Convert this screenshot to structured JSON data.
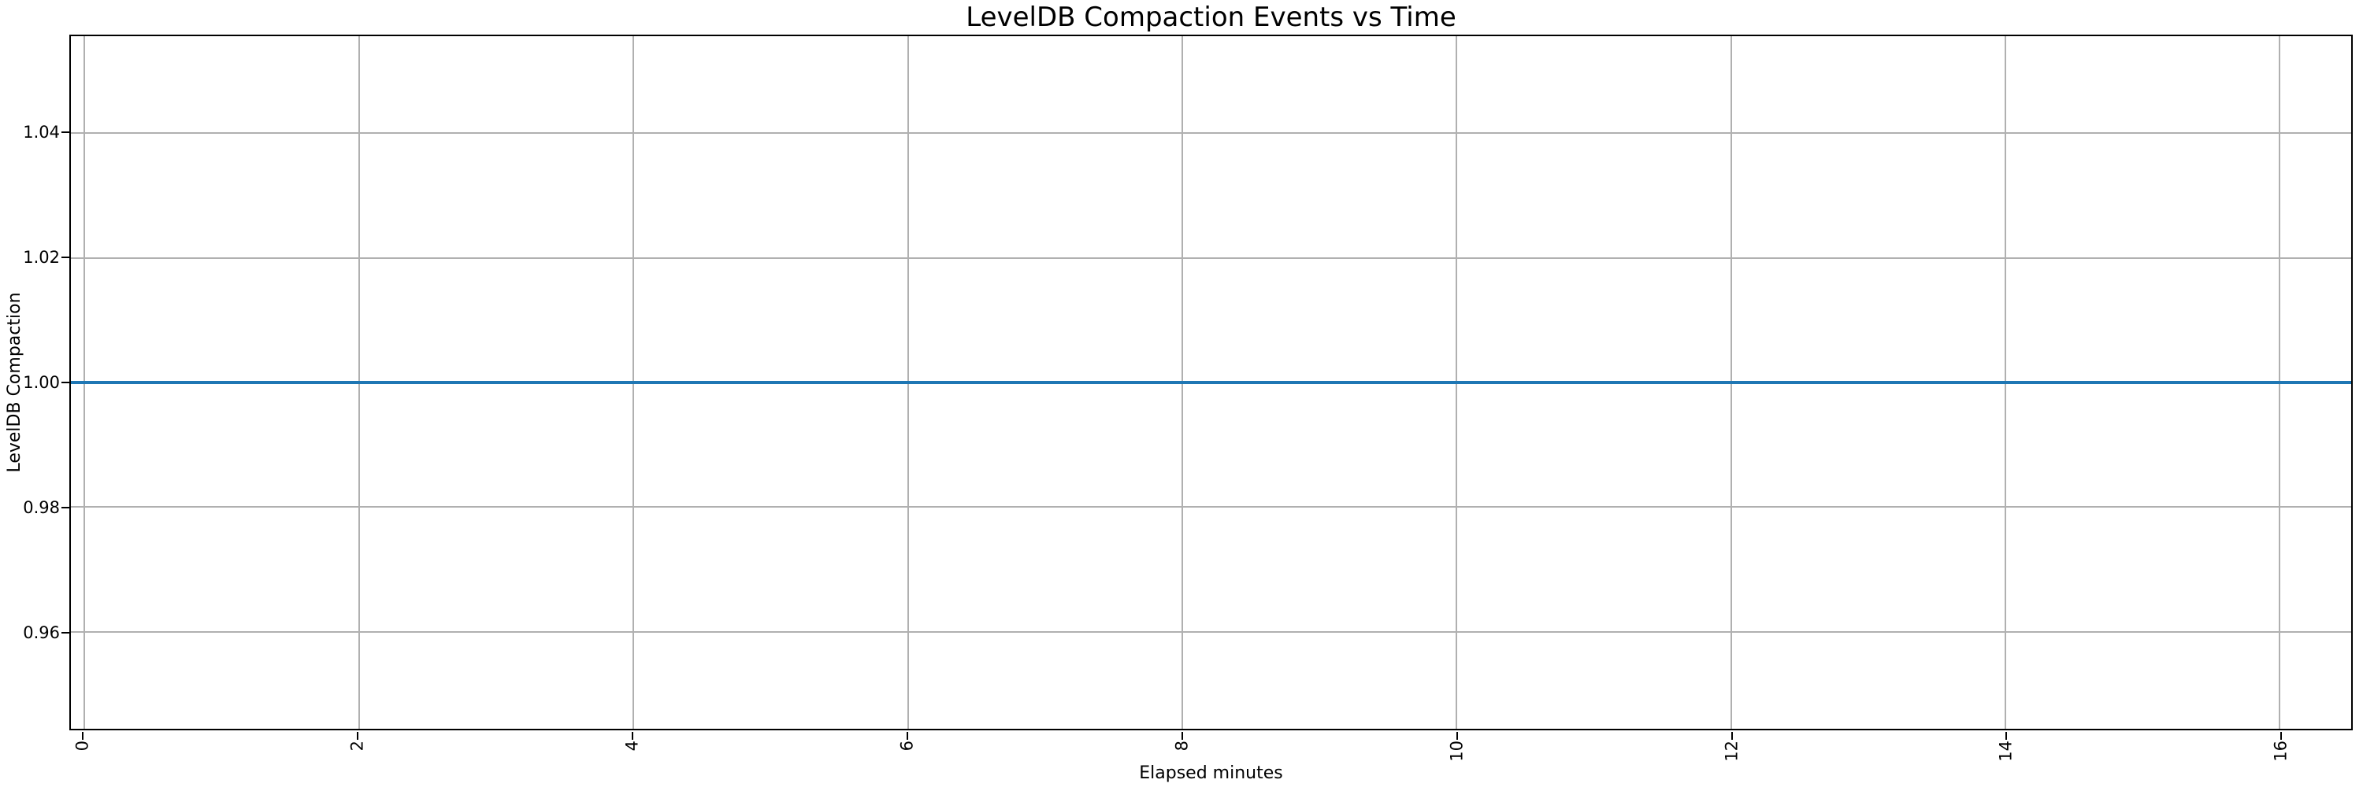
{
  "colors": {
    "line": "#1f77b4",
    "grid": "#b0b0b0",
    "spine": "#000000",
    "background": "#ffffff",
    "text": "#000000"
  },
  "chart_data": {
    "type": "line",
    "title": "LevelDB Compaction Events vs Time",
    "xlabel": "Elapsed minutes",
    "ylabel": "LevelDB Compaction",
    "xlim": [
      -0.1,
      16.52
    ],
    "ylim": [
      0.9444,
      1.0556
    ],
    "grid": true,
    "legend": false,
    "xticks": {
      "values": [
        0,
        2,
        4,
        6,
        8,
        10,
        12,
        14,
        16
      ],
      "labels": [
        "0",
        "2",
        "4",
        "6",
        "8",
        "10",
        "12",
        "14",
        "16"
      ],
      "rotation_deg": 90
    },
    "yticks": {
      "values": [
        0.96,
        0.98,
        1.0,
        1.02,
        1.04
      ],
      "labels": [
        "0.96",
        "0.98",
        "1.00",
        "1.02",
        "1.04"
      ]
    },
    "series": [
      {
        "name": "LevelDB Compaction",
        "color": "#1f77b4",
        "constant_y": 1.0,
        "points": [
          [
            -0.1,
            1.0
          ],
          [
            16.52,
            1.0
          ]
        ]
      }
    ]
  }
}
